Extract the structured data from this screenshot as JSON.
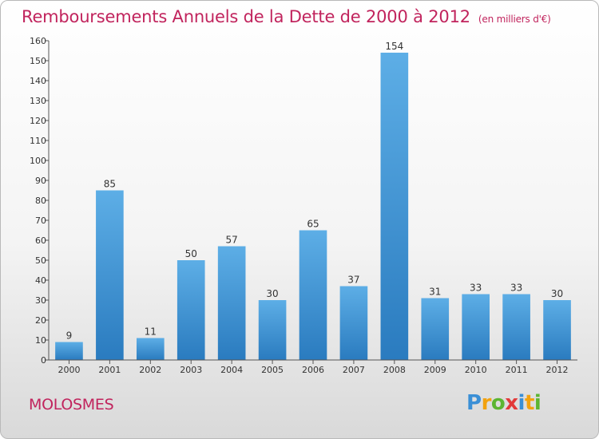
{
  "header": {
    "title": "Remboursements Annuels de la Dette de 2000 à 2012",
    "unit": "(en milliers d'€)"
  },
  "footer": {
    "place": "MOLOSMES",
    "brand": [
      "P",
      "r",
      "o",
      "x",
      "i",
      "t",
      "i"
    ],
    "brand_colors": [
      "#3a8fd6",
      "#f2a20f",
      "#5cb531",
      "#e23a3a",
      "#3a8fd6",
      "#f2a20f",
      "#5cb531"
    ]
  },
  "colors": {
    "bar_light": "#5daee6",
    "bar_dark": "#2a7bbf",
    "axis": "#555555",
    "title": "#c1245d"
  },
  "chart_data": {
    "type": "bar",
    "title": "Remboursements Annuels de la Dette de 2000 à 2012",
    "xlabel": "",
    "ylabel": "",
    "categories": [
      "2000",
      "2001",
      "2002",
      "2003",
      "2004",
      "2005",
      "2006",
      "2007",
      "2008",
      "2009",
      "2010",
      "2011",
      "2012"
    ],
    "values": [
      9,
      85,
      11,
      50,
      57,
      30,
      65,
      37,
      154,
      31,
      33,
      33,
      30
    ],
    "ylim": [
      0,
      160
    ],
    "ytick_step": 10,
    "grid": false,
    "value_labels": true
  }
}
